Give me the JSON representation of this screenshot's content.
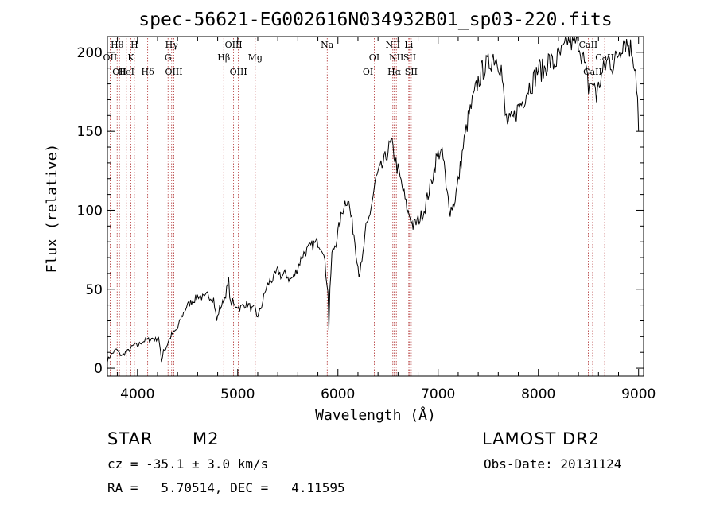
{
  "chart_data": {
    "type": "line",
    "title": "spec-56621-EG002616N034932B01_sp03-220.fits",
    "xlabel": "Wavelength (Å)",
    "ylabel": "Flux (relative)",
    "xlim": [
      3700,
      9050
    ],
    "ylim": [
      -5,
      210
    ],
    "xticks": [
      4000,
      5000,
      6000,
      7000,
      8000,
      9000
    ],
    "yticks": [
      0,
      50,
      100,
      150,
      200
    ],
    "x": [
      3700,
      3730,
      3760,
      3790,
      3820,
      3850,
      3880,
      3910,
      3940,
      3970,
      4000,
      4030,
      4060,
      4090,
      4120,
      4150,
      4180,
      4210,
      4240,
      4260,
      4280,
      4310,
      4340,
      4370,
      4400,
      4430,
      4460,
      4490,
      4520,
      4550,
      4580,
      4610,
      4640,
      4670,
      4700,
      4730,
      4760,
      4790,
      4820,
      4850,
      4880,
      4910,
      4930,
      4950,
      4970,
      4990,
      5020,
      5060,
      5100,
      5140,
      5170,
      5190,
      5210,
      5240,
      5280,
      5320,
      5360,
      5400,
      5440,
      5480,
      5520,
      5560,
      5600,
      5650,
      5700,
      5750,
      5800,
      5850,
      5880,
      5900,
      5910,
      5920,
      5940,
      5980,
      6020,
      6060,
      6100,
      6130,
      6160,
      6190,
      6210,
      6240,
      6260,
      6280,
      6300,
      6340,
      6380,
      6420,
      6460,
      6500,
      6530,
      6560,
      6580,
      6620,
      6660,
      6690,
      6720,
      6750,
      6780,
      6820,
      6860,
      6900,
      6940,
      6980,
      7020,
      7060,
      7080,
      7100,
      7120,
      7160,
      7200,
      7250,
      7300,
      7350,
      7400,
      7450,
      7500,
      7550,
      7600,
      7630,
      7650,
      7670,
      7700,
      7750,
      7800,
      7850,
      7900,
      7950,
      8000,
      8050,
      8100,
      8150,
      8200,
      8250,
      8300,
      8350,
      8400,
      8450,
      8500,
      8530,
      8545,
      8560,
      8580,
      8620,
      8660,
      8700,
      8750,
      8800,
      8850,
      8900,
      8940,
      8970,
      8990,
      9000
    ],
    "y": [
      5,
      8,
      10,
      12,
      9,
      8,
      10,
      11,
      13,
      15,
      14,
      16,
      17,
      18,
      18,
      19,
      18,
      20,
      4,
      12,
      12,
      17,
      21,
      23,
      25,
      31,
      35,
      39,
      41,
      43,
      44,
      46,
      45,
      44,
      47,
      45,
      44,
      30,
      38,
      41,
      47,
      55,
      40,
      42,
      39,
      40,
      38,
      40,
      41,
      37,
      38,
      33,
      34,
      40,
      50,
      55,
      57,
      62,
      58,
      60,
      56,
      58,
      64,
      72,
      75,
      78,
      80,
      76,
      60,
      50,
      25,
      48,
      72,
      80,
      92,
      104,
      108,
      96,
      85,
      70,
      60,
      66,
      78,
      88,
      92,
      105,
      120,
      125,
      130,
      138,
      142,
      136,
      130,
      120,
      110,
      100,
      96,
      90,
      92,
      95,
      100,
      110,
      120,
      132,
      138,
      130,
      112,
      108,
      100,
      105,
      118,
      140,
      158,
      170,
      182,
      190,
      192,
      198,
      195,
      190,
      175,
      160,
      155,
      158,
      165,
      170,
      178,
      182,
      190,
      188,
      195,
      192,
      197,
      200,
      210,
      205,
      208,
      195,
      178,
      182,
      176,
      182,
      172,
      183,
      190,
      196,
      192,
      200,
      208,
      205,
      200,
      190,
      170,
      150
    ],
    "lines": [
      {
        "x": 3727,
        "label": "OII",
        "row": 2
      },
      {
        "x": 3797,
        "label": "Hθ",
        "row": 1
      },
      {
        "x": 3820,
        "label": "OII",
        "row": 3
      },
      {
        "x": 3889,
        "label": "HeI",
        "row": 3
      },
      {
        "x": 3934,
        "label": "K",
        "row": 2
      },
      {
        "x": 3969,
        "label": "H",
        "row": 1
      },
      {
        "x": 4102,
        "label": "Hδ",
        "row": 3
      },
      {
        "x": 4305,
        "label": "G",
        "row": 2
      },
      {
        "x": 4341,
        "label": "Hγ",
        "row": 1
      },
      {
        "x": 4363,
        "label": "OIII",
        "row": 3
      },
      {
        "x": 4861,
        "label": "Hβ",
        "row": 2
      },
      {
        "x": 4959,
        "label": "OIII",
        "row": 1
      },
      {
        "x": 5007,
        "label": "OIII",
        "row": 3
      },
      {
        "x": 5175,
        "label": "Mg",
        "row": 2
      },
      {
        "x": 5893,
        "label": "Na",
        "row": 1
      },
      {
        "x": 6300,
        "label": "OI",
        "row": 3
      },
      {
        "x": 6363,
        "label": "OI",
        "row": 2
      },
      {
        "x": 6548,
        "label": "NII",
        "row": 1
      },
      {
        "x": 6563,
        "label": "Hα",
        "row": 3
      },
      {
        "x": 6583,
        "label": "NII",
        "row": 2
      },
      {
        "x": 6707,
        "label": "Li",
        "row": 1
      },
      {
        "x": 6716,
        "label": "SII",
        "row": 2
      },
      {
        "x": 6731,
        "label": "SII",
        "row": 3
      },
      {
        "x": 8498,
        "label": "CaII",
        "row": 1
      },
      {
        "x": 8542,
        "label": "CaII",
        "row": 3
      },
      {
        "x": 8662,
        "label": "CaII",
        "row": 2
      }
    ]
  },
  "info": {
    "object_class": "STAR",
    "subclass": "M2",
    "survey": "LAMOST DR2",
    "cz": "cz = -35.1 ± 3.0 km/s",
    "obs_date": "Obs-Date: 20131124",
    "coords": "RA =   5.70514, DEC =   4.11595"
  }
}
